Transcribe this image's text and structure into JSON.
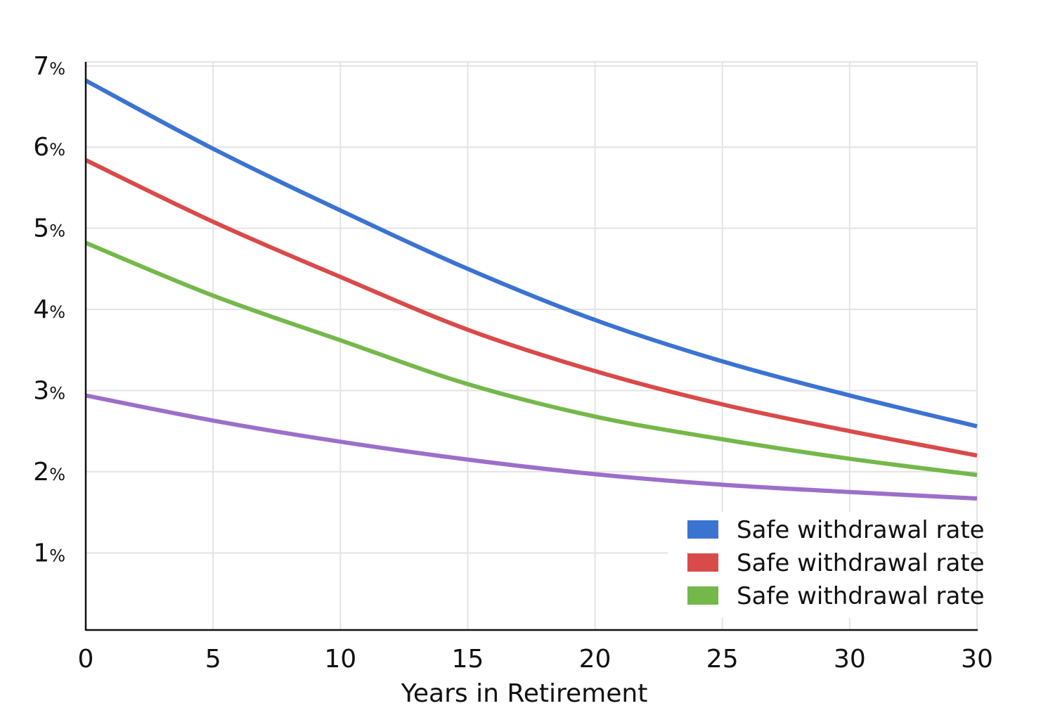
{
  "chart_data": {
    "type": "line",
    "title": "",
    "xlabel": "Years in Retirement",
    "ylabel": "",
    "x": [
      0,
      5,
      10,
      15,
      20,
      25,
      30,
      30
    ],
    "x_tick_labels": [
      "0",
      "5",
      "10",
      "15",
      "20",
      "25",
      "30",
      "30"
    ],
    "y_ticks": [
      1,
      2,
      3,
      4,
      5,
      6,
      7
    ],
    "y_tick_labels": [
      "1",
      "2",
      "3",
      "4",
      "5",
      "6",
      "7"
    ],
    "y_tick_suffix": "%",
    "ylim": [
      0.05,
      7.05
    ],
    "grid": true,
    "legend_position": "bottom-right",
    "series": [
      {
        "name": "Safe withdrawal rate",
        "color": "#3b73d1",
        "values": [
          6.82,
          5.98,
          5.22,
          4.5,
          3.87,
          3.36,
          2.94,
          2.56
        ]
      },
      {
        "name": "Safe withdrawal rate",
        "color": "#d94a4a",
        "values": [
          5.84,
          5.08,
          4.4,
          3.75,
          3.24,
          2.83,
          2.5,
          2.2
        ]
      },
      {
        "name": "Safe withdrawal rate",
        "color": "#74b84a",
        "values": [
          4.82,
          4.17,
          3.62,
          3.08,
          2.68,
          2.4,
          2.16,
          1.96
        ]
      },
      {
        "name": "",
        "color": "#9c6fc9",
        "values": [
          2.94,
          2.63,
          2.37,
          2.15,
          1.97,
          1.84,
          1.75,
          1.67
        ]
      }
    ]
  }
}
